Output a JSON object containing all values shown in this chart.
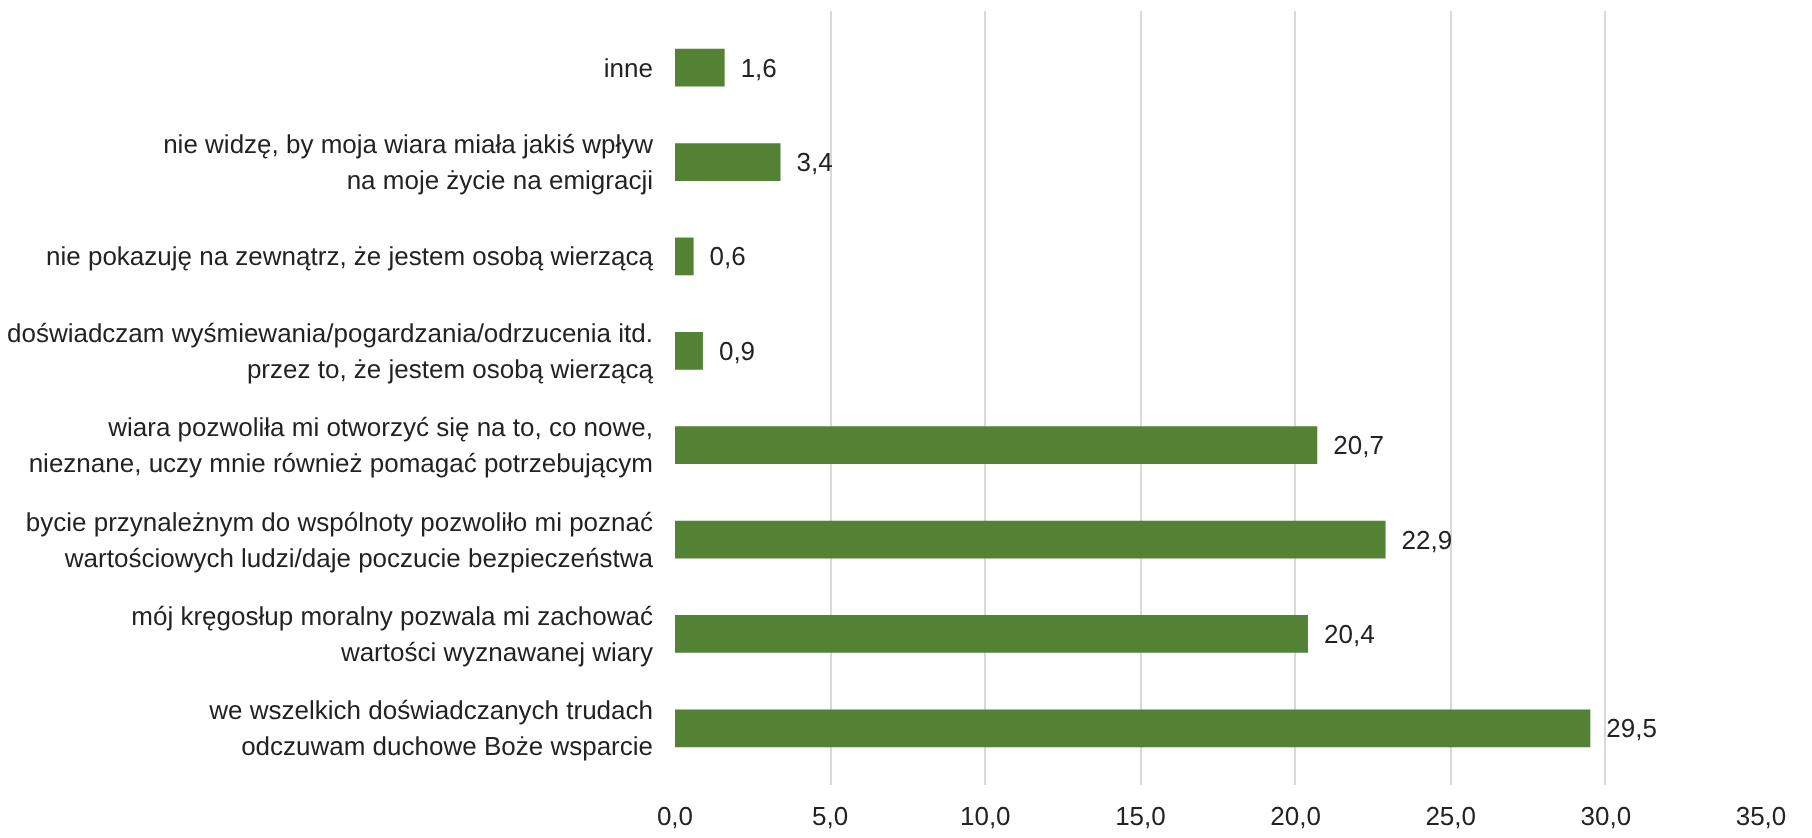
{
  "chart_data": {
    "type": "bar",
    "orientation": "horizontal",
    "categories": [
      "inne",
      "nie widzę, by moja wiara miała jakiś wpływ\nna moje życie na emigracji",
      "nie pokazuję na zewnątrz, że jestem osobą wierzącą",
      "doświadczam wyśmiewania/pogardzania/odrzucenia itd.\nprzez to, że jestem osobą wierzącą",
      "wiara pozwoliła mi otworzyć się na to, co nowe,\nnieznane, uczy mnie również pomagać potrzebującym",
      "bycie przynależnym do wspólnoty pozwoliło mi poznać\nwartościowych ludzi/daje poczucie bezpieczeństwa",
      "mój kręgosłup moralny pozwala mi zachować\nwartości wyznawanej wiary",
      "we wszelkich doświadczanych trudach\nodczuwam duchowe Boże wsparcie"
    ],
    "values": [
      1.6,
      3.4,
      0.6,
      0.9,
      20.7,
      22.9,
      20.4,
      29.5
    ],
    "value_labels": [
      "1,6",
      "3,4",
      "0,6",
      "0,9",
      "20,7",
      "22,9",
      "20,4",
      "29,5"
    ],
    "color": "#548235",
    "xlim": [
      0,
      35
    ],
    "xticks": [
      {
        "value": 0,
        "label": "0,0"
      },
      {
        "value": 5,
        "label": "5,0"
      },
      {
        "value": 10,
        "label": "10,0"
      },
      {
        "value": 15,
        "label": "15,0"
      },
      {
        "value": 20,
        "label": "20,0"
      },
      {
        "value": 25,
        "label": "25,0"
      },
      {
        "value": 30,
        "label": "30,0"
      },
      {
        "value": 35,
        "label": "35,0"
      }
    ],
    "grid": "x"
  }
}
